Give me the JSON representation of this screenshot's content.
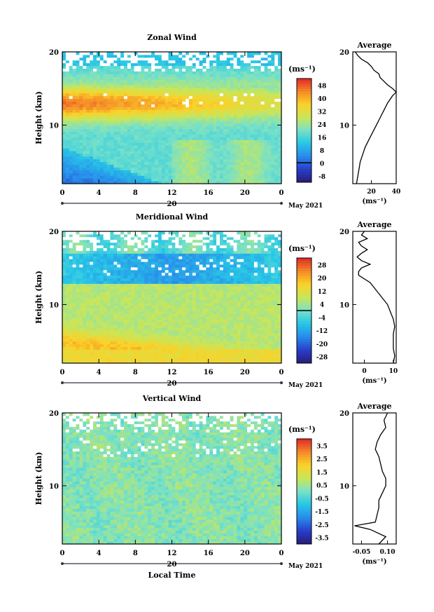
{
  "chart_data": [
    {
      "type": "heatmap",
      "title": "Zonal Wind",
      "ylabel": "Height (km)",
      "y_ticks": [
        "20",
        "10"
      ],
      "ylim": [
        2,
        20
      ],
      "x_ticks": [
        "0",
        "4",
        "8",
        "12",
        "16",
        "20",
        "0"
      ],
      "xlim": [
        0,
        24
      ],
      "date_tick": "20",
      "date_label": "May 2021",
      "colorbar": {
        "unit": "(ms⁻¹)",
        "levels": [
          48,
          40,
          32,
          24,
          16,
          8,
          0,
          -8
        ],
        "vmin": -12,
        "vmax": 52,
        "zero_line": 0
      },
      "profile": {
        "title": "Average",
        "xlabel": "(ms⁻¹)",
        "x_ticks": [
          "20",
          "40"
        ],
        "y_ticks": [
          "20",
          "10"
        ],
        "xlim": [
          5,
          40
        ],
        "ylim": [
          2,
          20
        ],
        "points": [
          [
            8,
            2
          ],
          [
            9,
            3
          ],
          [
            10,
            4
          ],
          [
            11,
            5
          ],
          [
            13,
            6
          ],
          [
            15,
            7
          ],
          [
            18,
            8
          ],
          [
            21,
            9
          ],
          [
            24,
            10
          ],
          [
            27,
            11
          ],
          [
            30,
            12
          ],
          [
            33,
            13
          ],
          [
            37,
            14
          ],
          [
            40,
            14.5
          ],
          [
            37,
            15
          ],
          [
            33,
            15.5
          ],
          [
            30,
            16
          ],
          [
            27,
            16.5
          ],
          [
            26,
            17
          ],
          [
            22,
            17.5
          ],
          [
            20,
            18
          ],
          [
            17,
            18.5
          ],
          [
            12,
            19
          ],
          [
            9,
            19.5
          ],
          [
            7,
            20
          ]
        ]
      }
    },
    {
      "type": "heatmap",
      "title": "Meridional Wind",
      "ylabel": "Height (km)",
      "y_ticks": [
        "20",
        "10"
      ],
      "ylim": [
        2,
        20
      ],
      "x_ticks": [
        "0",
        "4",
        "8",
        "12",
        "16",
        "20",
        "0"
      ],
      "xlim": [
        0,
        24
      ],
      "date_tick": "20",
      "date_label": "May 2021",
      "colorbar": {
        "unit": "(ms⁻¹)",
        "levels": [
          28,
          20,
          12,
          4,
          -4,
          -12,
          -20,
          -28
        ],
        "vmin": -32,
        "vmax": 32,
        "zero_line": 0
      },
      "profile": {
        "title": "Average",
        "xlabel": "(ms⁻¹)",
        "x_ticks": [
          "0",
          "10"
        ],
        "y_ticks": [
          "20",
          "10"
        ],
        "xlim": [
          -4,
          11
        ],
        "ylim": [
          2,
          20
        ],
        "points": [
          [
            10,
            2
          ],
          [
            10.5,
            3
          ],
          [
            10,
            4
          ],
          [
            10,
            5
          ],
          [
            10,
            6
          ],
          [
            10.5,
            7
          ],
          [
            10,
            8
          ],
          [
            9,
            9
          ],
          [
            8,
            10
          ],
          [
            6,
            11
          ],
          [
            4,
            12
          ],
          [
            2,
            13
          ],
          [
            -2,
            14
          ],
          [
            -2,
            14.5
          ],
          [
            -1,
            15
          ],
          [
            2,
            15.5
          ],
          [
            -1,
            16
          ],
          [
            -2.5,
            16.5
          ],
          [
            -1,
            17
          ],
          [
            1,
            17.5
          ],
          [
            -1,
            18
          ],
          [
            -2,
            18.5
          ],
          [
            1,
            19
          ],
          [
            -1,
            19.5
          ],
          [
            0,
            20
          ]
        ]
      }
    },
    {
      "type": "heatmap",
      "title": "Vertical Wind",
      "ylabel": "Height (km)",
      "xlabel": "Local Time",
      "y_ticks": [
        "20",
        "10"
      ],
      "ylim": [
        2,
        20
      ],
      "x_ticks": [
        "0",
        "4",
        "8",
        "12",
        "16",
        "20",
        "0"
      ],
      "xlim": [
        0,
        24
      ],
      "date_tick": "20",
      "date_label": "May 2021",
      "colorbar": {
        "unit": "(ms⁻¹)",
        "levels": [
          3.5,
          2.5,
          1.5,
          0.5,
          -0.5,
          -1.5,
          -2.5,
          -3.5
        ],
        "vmin": -4,
        "vmax": 4,
        "zero_line": null
      },
      "profile": {
        "title": "Average",
        "xlabel": "(ms⁻¹)",
        "x_ticks": [
          "-0.05",
          "0.10"
        ],
        "y_ticks": [
          "20",
          "10"
        ],
        "xlim": [
          -0.1,
          0.15
        ],
        "ylim": [
          2,
          20
        ],
        "points": [
          [
            0.05,
            2
          ],
          [
            0.09,
            3
          ],
          [
            0.0,
            4
          ],
          [
            -0.09,
            4.5
          ],
          [
            0.03,
            5
          ],
          [
            0.04,
            6
          ],
          [
            0.05,
            7
          ],
          [
            0.05,
            8
          ],
          [
            0.07,
            9
          ],
          [
            0.09,
            10
          ],
          [
            0.09,
            11
          ],
          [
            0.07,
            12
          ],
          [
            0.06,
            13
          ],
          [
            0.05,
            14
          ],
          [
            0.03,
            15
          ],
          [
            0.04,
            16
          ],
          [
            0.06,
            17
          ],
          [
            0.09,
            18
          ],
          [
            0.08,
            19
          ],
          [
            0.1,
            20
          ]
        ]
      }
    }
  ]
}
